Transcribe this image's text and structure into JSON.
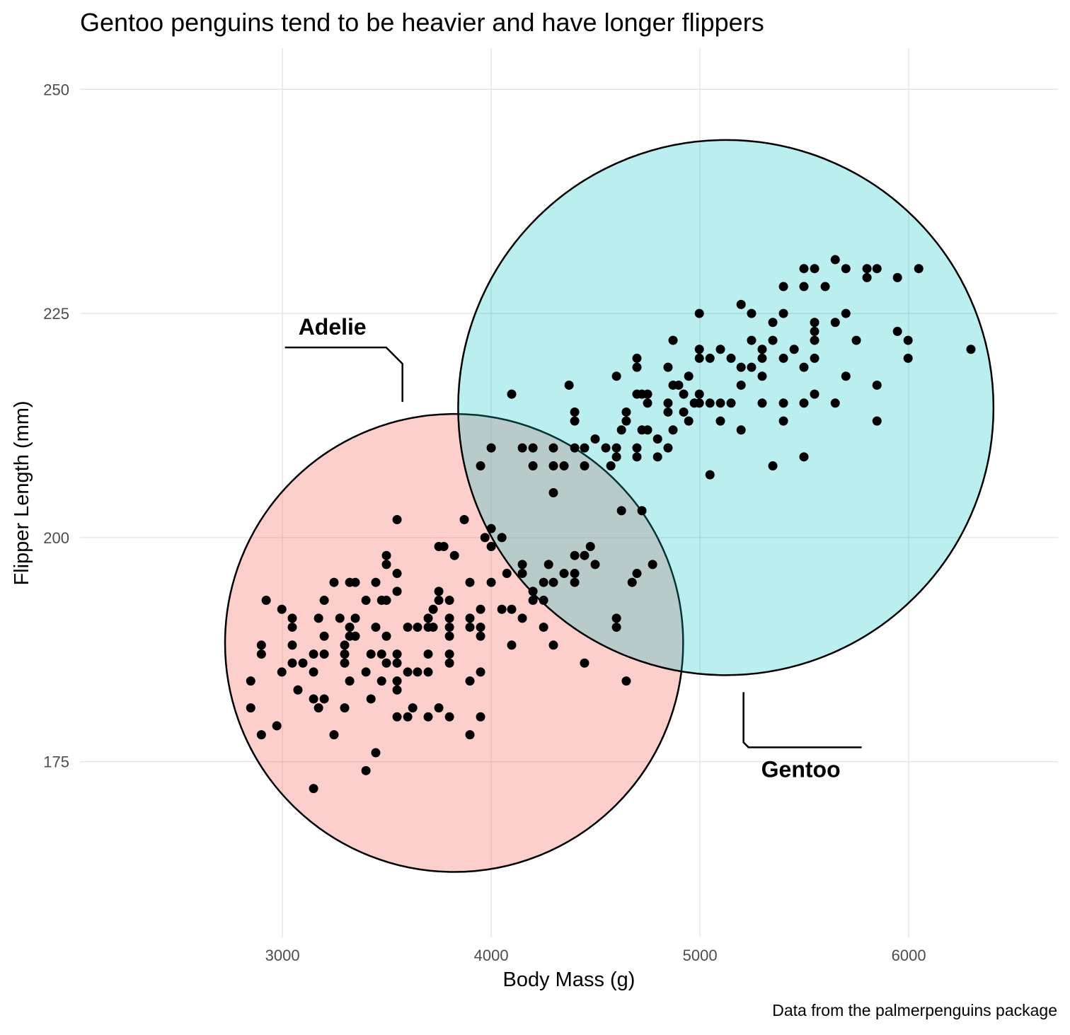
{
  "chart_data": {
    "type": "scatter",
    "title": "Gentoo penguins tend to be heavier and have longer flippers",
    "x_label": "Body Mass (g)",
    "y_label": "Flipper Length (mm)",
    "caption": "Data from the palmerpenguins package",
    "xlim": [
      2030,
      6715
    ],
    "ylim": [
      155.4,
      254.6
    ],
    "xticks": [
      3000,
      4000,
      5000,
      6000
    ],
    "yticks": [
      175,
      200,
      225,
      250
    ],
    "grid": true,
    "point_color": "#000000",
    "series": [
      {
        "name": "Adelie",
        "color": "#F8766D",
        "x": [
          2848,
          2848,
          2899,
          2899,
          2899,
          2922,
          2973,
          2997,
          2997,
          3047,
          3047,
          3047,
          3047,
          3074,
          3098,
          3149,
          3149,
          3149,
          3149,
          3173,
          3173,
          3200,
          3200,
          3200,
          3200,
          3247,
          3247,
          3275,
          3298,
          3298,
          3298,
          3298,
          3322,
          3322,
          3322,
          3322,
          3349,
          3349,
          3349,
          3400,
          3400,
          3400,
          3424,
          3424,
          3447,
          3447,
          3447,
          3475,
          3475,
          3475,
          3498,
          3498,
          3498,
          3498,
          3498,
          3549,
          3549,
          3549,
          3549,
          3549,
          3549,
          3549,
          3549,
          3600,
          3600,
          3600,
          3624,
          3647,
          3647,
          3698,
          3698,
          3698,
          3698,
          3698,
          3722,
          3722,
          3749,
          3749,
          3749,
          3749,
          3773,
          3800,
          3800,
          3800,
          3800,
          3800,
          3800,
          3800,
          3824,
          3871,
          3898,
          3898,
          3898,
          3898,
          3898,
          3949,
          3949,
          3949,
          3949,
          3949,
          4000,
          4051,
          4098,
          4098,
          4149,
          4251,
          4298,
          4447,
          4647,
          4075,
          3970,
          4000,
          4000,
          4051,
          4149,
          4149,
          4200,
          4200,
          4251,
          4251,
          4275,
          4298,
          4349,
          4400,
          4400,
          4400,
          4447,
          4475,
          4498,
          4600,
          4600,
          4675,
          4698,
          4773
        ],
        "y": [
          184,
          181,
          188,
          187,
          178,
          193,
          179,
          192,
          185,
          191,
          190,
          188,
          186,
          183,
          186,
          187,
          185,
          182,
          172,
          191,
          181,
          193,
          189,
          187,
          182,
          195,
          178,
          191,
          188,
          187,
          186,
          181,
          195,
          190,
          189,
          184,
          195,
          191,
          189,
          193,
          185,
          174,
          187,
          182,
          195,
          190,
          176,
          193,
          187,
          184,
          198,
          197,
          193,
          189,
          186,
          202,
          196,
          194,
          187,
          186,
          184,
          183,
          180,
          190,
          185,
          180,
          181,
          190,
          185,
          190,
          191,
          187,
          185,
          180,
          192,
          190,
          199,
          194,
          193,
          181,
          199,
          193,
          191,
          190,
          189,
          187,
          186,
          180,
          198,
          202,
          195,
          191,
          190,
          184,
          178,
          192,
          190,
          189,
          185,
          180,
          195,
          192,
          192,
          188,
          191,
          190,
          188,
          186,
          184,
          196,
          200,
          201,
          199,
          200,
          197,
          196,
          194,
          193,
          195,
          193,
          197,
          195,
          196,
          198,
          196,
          195,
          198,
          199,
          197,
          191,
          190,
          195,
          196,
          197
        ]
      },
      {
        "name": "Gentoo",
        "color": "#00BFC4",
        "x": [
          4098,
          4000,
          3949,
          4149,
          4200,
          4200,
          4298,
          4298,
          4298,
          4349,
          4373,
          4400,
          4400,
          4400,
          4447,
          4447,
          4498,
          4549,
          4573,
          4600,
          4600,
          4600,
          4624,
          4624,
          4647,
          4647,
          4698,
          4698,
          4698,
          4698,
          4698,
          4722,
          4722,
          4722,
          4749,
          4749,
          4749,
          4797,
          4797,
          4847,
          4847,
          4847,
          4847,
          4871,
          4871,
          4871,
          4898,
          4922,
          4922,
          4946,
          4946,
          4973,
          4997,
          4997,
          4997,
          4997,
          4997,
          5048,
          5048,
          5048,
          5098,
          5098,
          5098,
          5149,
          5149,
          5197,
          5197,
          5197,
          5197,
          5247,
          5247,
          5247,
          5298,
          5298,
          5298,
          5298,
          5349,
          5349,
          5349,
          5400,
          5400,
          5400,
          5400,
          5400,
          5451,
          5498,
          5498,
          5498,
          5498,
          5498,
          5549,
          5549,
          5549,
          5549,
          5549,
          5549,
          5600,
          5648,
          5648,
          5648,
          5699,
          5699,
          5699,
          5749,
          5800,
          5800,
          5848,
          5848,
          5848,
          5946,
          5946,
          5997,
          5997,
          6048,
          6298
        ],
        "y": [
          216,
          210,
          208,
          210,
          210,
          208,
          210,
          208,
          205,
          208,
          217,
          214,
          213,
          210,
          210,
          208,
          211,
          210,
          208,
          210,
          209,
          218,
          203,
          212,
          214,
          213,
          210,
          209,
          220,
          219,
          216,
          216,
          212,
          203,
          216,
          215,
          212,
          211,
          209,
          219,
          215,
          214,
          210,
          222,
          217,
          212,
          217,
          216,
          214,
          218,
          213,
          215,
          225,
          221,
          220,
          216,
          215,
          220,
          215,
          207,
          221,
          215,
          213,
          220,
          215,
          226,
          219,
          217,
          212,
          225,
          222,
          219,
          221,
          220,
          218,
          215,
          224,
          222,
          208,
          225,
          220,
          228,
          215,
          213,
          221,
          230,
          228,
          219,
          215,
          209,
          230,
          224,
          223,
          222,
          220,
          216,
          228,
          231,
          224,
          215,
          230,
          225,
          218,
          222,
          230,
          229,
          230,
          217,
          213,
          229,
          223,
          222,
          220,
          230,
          221
        ]
      }
    ]
  }
}
